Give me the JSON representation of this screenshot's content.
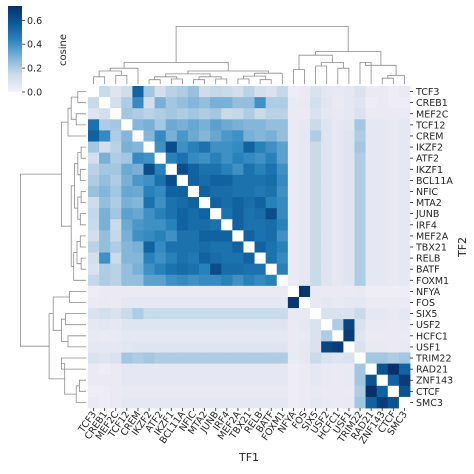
{
  "chart_data": {
    "type": "heatmap",
    "title": "",
    "xlabel": "TF1",
    "ylabel": "TF2",
    "rows": [
      "TCF3",
      "CREB1",
      "MEF2C",
      "TCF12",
      "CREM",
      "IKZF2",
      "ATF2",
      "IKZF1",
      "BCL11A",
      "NFIC",
      "MTA2",
      "JUNB",
      "IRF4",
      "MEF2A",
      "TBX21",
      "RELB",
      "BATF",
      "FOXM1",
      "NFYA",
      "FOS",
      "SIX5",
      "USF2",
      "HCFC1",
      "USF1",
      "TRIM22",
      "RAD21",
      "ZNF143",
      "CTCF",
      "SMC3"
    ],
    "columns": [
      "TCF3",
      "CREB1",
      "MEF2C",
      "TCF12",
      "CREM",
      "IKZF2",
      "ATF2",
      "IKZF1",
      "BCL11A",
      "NFIC",
      "MTA2",
      "JUNB",
      "IRF4",
      "MEF2A",
      "TBX21",
      "RELB",
      "BATF",
      "FOXM1",
      "NFYA",
      "FOS",
      "SIX5",
      "USF2",
      "HCFC1",
      "USF1",
      "TRIM22",
      "RAD21",
      "ZNF143",
      "CTCF",
      "SMC3"
    ],
    "values": [
      [
        0.0,
        0.15,
        0.08,
        0.14,
        0.55,
        0.22,
        0.12,
        0.18,
        0.2,
        0.24,
        0.14,
        0.16,
        0.15,
        0.12,
        0.18,
        0.12,
        0.1,
        0.16,
        0.03,
        0.04,
        0.1,
        0.06,
        0.05,
        0.06,
        0.1,
        0.04,
        0.04,
        0.03,
        0.04
      ],
      [
        0.15,
        0.0,
        0.12,
        0.2,
        0.42,
        0.12,
        0.3,
        0.22,
        0.25,
        0.28,
        0.25,
        0.3,
        0.3,
        0.25,
        0.25,
        0.4,
        0.2,
        0.2,
        0.04,
        0.05,
        0.12,
        0.07,
        0.04,
        0.06,
        0.08,
        0.03,
        0.04,
        0.03,
        0.03
      ],
      [
        0.08,
        0.12,
        0.0,
        0.22,
        0.2,
        0.18,
        0.2,
        0.22,
        0.2,
        0.22,
        0.2,
        0.22,
        0.15,
        0.16,
        0.2,
        0.15,
        0.18,
        0.18,
        0.04,
        0.04,
        0.1,
        0.06,
        0.05,
        0.06,
        0.1,
        0.04,
        0.04,
        0.04,
        0.04
      ],
      [
        0.5,
        0.2,
        0.22,
        0.0,
        0.28,
        0.3,
        0.22,
        0.32,
        0.3,
        0.33,
        0.3,
        0.35,
        0.32,
        0.3,
        0.28,
        0.28,
        0.25,
        0.25,
        0.04,
        0.06,
        0.15,
        0.08,
        0.06,
        0.07,
        0.22,
        0.06,
        0.06,
        0.05,
        0.06
      ],
      [
        0.55,
        0.42,
        0.2,
        0.28,
        0.0,
        0.28,
        0.42,
        0.3,
        0.38,
        0.32,
        0.28,
        0.33,
        0.38,
        0.4,
        0.3,
        0.28,
        0.3,
        0.25,
        0.04,
        0.06,
        0.2,
        0.08,
        0.06,
        0.08,
        0.2,
        0.06,
        0.06,
        0.05,
        0.06
      ],
      [
        0.22,
        0.12,
        0.18,
        0.3,
        0.28,
        0.0,
        0.4,
        0.62,
        0.4,
        0.45,
        0.5,
        0.4,
        0.4,
        0.42,
        0.55,
        0.45,
        0.4,
        0.35,
        0.04,
        0.06,
        0.15,
        0.08,
        0.06,
        0.08,
        0.22,
        0.06,
        0.06,
        0.05,
        0.06
      ],
      [
        0.12,
        0.3,
        0.2,
        0.22,
        0.42,
        0.4,
        0.0,
        0.45,
        0.5,
        0.42,
        0.4,
        0.45,
        0.4,
        0.45,
        0.42,
        0.4,
        0.45,
        0.35,
        0.04,
        0.06,
        0.15,
        0.08,
        0.06,
        0.08,
        0.2,
        0.06,
        0.06,
        0.05,
        0.06
      ],
      [
        0.18,
        0.22,
        0.22,
        0.32,
        0.3,
        0.62,
        0.45,
        0.0,
        0.62,
        0.55,
        0.5,
        0.5,
        0.45,
        0.4,
        0.5,
        0.45,
        0.5,
        0.4,
        0.04,
        0.06,
        0.15,
        0.08,
        0.06,
        0.08,
        0.2,
        0.06,
        0.06,
        0.05,
        0.06
      ],
      [
        0.2,
        0.25,
        0.2,
        0.3,
        0.38,
        0.4,
        0.5,
        0.62,
        0.0,
        0.55,
        0.52,
        0.55,
        0.55,
        0.5,
        0.5,
        0.5,
        0.52,
        0.42,
        0.04,
        0.06,
        0.15,
        0.08,
        0.06,
        0.08,
        0.2,
        0.06,
        0.06,
        0.05,
        0.06
      ],
      [
        0.24,
        0.28,
        0.22,
        0.33,
        0.32,
        0.45,
        0.42,
        0.55,
        0.55,
        0.0,
        0.55,
        0.52,
        0.52,
        0.5,
        0.5,
        0.48,
        0.5,
        0.4,
        0.04,
        0.06,
        0.15,
        0.08,
        0.06,
        0.08,
        0.2,
        0.06,
        0.06,
        0.05,
        0.06
      ],
      [
        0.14,
        0.25,
        0.2,
        0.3,
        0.28,
        0.5,
        0.4,
        0.5,
        0.52,
        0.55,
        0.0,
        0.55,
        0.52,
        0.55,
        0.52,
        0.55,
        0.45,
        0.42,
        0.04,
        0.06,
        0.15,
        0.08,
        0.06,
        0.08,
        0.2,
        0.06,
        0.06,
        0.05,
        0.06
      ],
      [
        0.16,
        0.3,
        0.22,
        0.35,
        0.33,
        0.4,
        0.45,
        0.5,
        0.55,
        0.52,
        0.55,
        0.0,
        0.5,
        0.55,
        0.5,
        0.52,
        0.62,
        0.42,
        0.04,
        0.06,
        0.15,
        0.08,
        0.06,
        0.08,
        0.2,
        0.06,
        0.06,
        0.05,
        0.06
      ],
      [
        0.15,
        0.3,
        0.15,
        0.32,
        0.38,
        0.4,
        0.4,
        0.45,
        0.55,
        0.52,
        0.52,
        0.5,
        0.0,
        0.55,
        0.5,
        0.5,
        0.52,
        0.45,
        0.04,
        0.06,
        0.15,
        0.08,
        0.06,
        0.08,
        0.2,
        0.06,
        0.06,
        0.05,
        0.06
      ],
      [
        0.12,
        0.25,
        0.16,
        0.3,
        0.4,
        0.42,
        0.45,
        0.4,
        0.5,
        0.5,
        0.55,
        0.55,
        0.55,
        0.0,
        0.55,
        0.5,
        0.52,
        0.4,
        0.04,
        0.06,
        0.15,
        0.08,
        0.06,
        0.08,
        0.2,
        0.06,
        0.06,
        0.05,
        0.06
      ],
      [
        0.18,
        0.25,
        0.2,
        0.28,
        0.3,
        0.55,
        0.42,
        0.5,
        0.5,
        0.5,
        0.52,
        0.5,
        0.5,
        0.55,
        0.0,
        0.55,
        0.5,
        0.45,
        0.04,
        0.06,
        0.15,
        0.08,
        0.06,
        0.08,
        0.2,
        0.06,
        0.06,
        0.05,
        0.06
      ],
      [
        0.12,
        0.4,
        0.15,
        0.28,
        0.28,
        0.45,
        0.4,
        0.45,
        0.5,
        0.48,
        0.55,
        0.52,
        0.5,
        0.5,
        0.55,
        0.0,
        0.5,
        0.42,
        0.04,
        0.06,
        0.15,
        0.08,
        0.06,
        0.08,
        0.2,
        0.06,
        0.06,
        0.05,
        0.06
      ],
      [
        0.1,
        0.2,
        0.18,
        0.25,
        0.3,
        0.4,
        0.45,
        0.5,
        0.52,
        0.5,
        0.45,
        0.62,
        0.52,
        0.52,
        0.5,
        0.5,
        0.0,
        0.45,
        0.04,
        0.06,
        0.15,
        0.08,
        0.06,
        0.08,
        0.2,
        0.06,
        0.06,
        0.05,
        0.06
      ],
      [
        0.16,
        0.2,
        0.18,
        0.25,
        0.25,
        0.35,
        0.35,
        0.4,
        0.42,
        0.4,
        0.42,
        0.42,
        0.45,
        0.4,
        0.45,
        0.42,
        0.45,
        0.0,
        0.04,
        0.06,
        0.15,
        0.08,
        0.06,
        0.08,
        0.2,
        0.06,
        0.06,
        0.05,
        0.06
      ],
      [
        0.03,
        0.04,
        0.04,
        0.04,
        0.04,
        0.04,
        0.04,
        0.04,
        0.04,
        0.04,
        0.04,
        0.04,
        0.04,
        0.04,
        0.04,
        0.04,
        0.04,
        0.04,
        0.0,
        0.7,
        0.05,
        0.04,
        0.04,
        0.04,
        0.05,
        0.03,
        0.03,
        0.03,
        0.03
      ],
      [
        0.04,
        0.05,
        0.04,
        0.06,
        0.06,
        0.06,
        0.06,
        0.06,
        0.06,
        0.06,
        0.06,
        0.06,
        0.06,
        0.06,
        0.06,
        0.06,
        0.06,
        0.06,
        0.7,
        0.0,
        0.05,
        0.06,
        0.05,
        0.06,
        0.06,
        0.04,
        0.04,
        0.04,
        0.04
      ],
      [
        0.1,
        0.12,
        0.1,
        0.15,
        0.2,
        0.15,
        0.15,
        0.15,
        0.15,
        0.15,
        0.15,
        0.15,
        0.15,
        0.15,
        0.15,
        0.15,
        0.15,
        0.15,
        0.05,
        0.05,
        0.0,
        0.1,
        0.1,
        0.1,
        0.15,
        0.06,
        0.06,
        0.05,
        0.06
      ],
      [
        0.06,
        0.07,
        0.06,
        0.08,
        0.08,
        0.08,
        0.08,
        0.08,
        0.08,
        0.08,
        0.08,
        0.08,
        0.08,
        0.08,
        0.08,
        0.08,
        0.08,
        0.08,
        0.04,
        0.06,
        0.1,
        0.0,
        0.2,
        0.65,
        0.1,
        0.05,
        0.05,
        0.04,
        0.05
      ],
      [
        0.05,
        0.04,
        0.05,
        0.06,
        0.06,
        0.06,
        0.06,
        0.06,
        0.06,
        0.06,
        0.06,
        0.06,
        0.06,
        0.06,
        0.06,
        0.06,
        0.06,
        0.06,
        0.04,
        0.05,
        0.1,
        0.2,
        0.0,
        0.68,
        0.08,
        0.04,
        0.04,
        0.04,
        0.04
      ],
      [
        0.06,
        0.06,
        0.06,
        0.07,
        0.08,
        0.08,
        0.08,
        0.08,
        0.08,
        0.08,
        0.08,
        0.08,
        0.08,
        0.08,
        0.08,
        0.08,
        0.08,
        0.08,
        0.04,
        0.06,
        0.1,
        0.65,
        0.68,
        0.0,
        0.1,
        0.05,
        0.05,
        0.04,
        0.05
      ],
      [
        0.1,
        0.08,
        0.1,
        0.22,
        0.2,
        0.22,
        0.2,
        0.2,
        0.2,
        0.2,
        0.2,
        0.2,
        0.2,
        0.2,
        0.2,
        0.2,
        0.2,
        0.2,
        0.05,
        0.06,
        0.15,
        0.1,
        0.08,
        0.1,
        0.0,
        0.22,
        0.22,
        0.2,
        0.22
      ],
      [
        0.04,
        0.03,
        0.04,
        0.06,
        0.06,
        0.06,
        0.06,
        0.06,
        0.06,
        0.06,
        0.06,
        0.06,
        0.06,
        0.06,
        0.06,
        0.06,
        0.06,
        0.06,
        0.03,
        0.04,
        0.06,
        0.05,
        0.04,
        0.05,
        0.22,
        0.0,
        0.6,
        0.72,
        0.55
      ],
      [
        0.04,
        0.04,
        0.04,
        0.06,
        0.06,
        0.06,
        0.06,
        0.06,
        0.06,
        0.06,
        0.06,
        0.06,
        0.06,
        0.06,
        0.06,
        0.06,
        0.06,
        0.06,
        0.03,
        0.04,
        0.06,
        0.05,
        0.04,
        0.05,
        0.22,
        0.6,
        0.0,
        0.55,
        0.68
      ],
      [
        0.03,
        0.03,
        0.04,
        0.05,
        0.05,
        0.05,
        0.05,
        0.05,
        0.05,
        0.05,
        0.05,
        0.05,
        0.05,
        0.05,
        0.05,
        0.05,
        0.05,
        0.05,
        0.03,
        0.04,
        0.05,
        0.04,
        0.04,
        0.04,
        0.2,
        0.72,
        0.55,
        0.0,
        0.6
      ],
      [
        0.04,
        0.03,
        0.04,
        0.06,
        0.06,
        0.06,
        0.06,
        0.06,
        0.06,
        0.06,
        0.06,
        0.06,
        0.06,
        0.06,
        0.06,
        0.06,
        0.06,
        0.06,
        0.03,
        0.04,
        0.06,
        0.05,
        0.04,
        0.05,
        0.22,
        0.55,
        0.68,
        0.6,
        0.0
      ]
    ],
    "colorbar": {
      "label": "cosine",
      "ticks": [
        "0.0",
        "0.2",
        "0.4",
        "0.6"
      ],
      "tick_values": [
        0.0,
        0.2,
        0.4,
        0.6
      ],
      "range": [
        0.0,
        0.72
      ],
      "colors": [
        "#f7f0f8",
        "#ccdcea",
        "#7fb4d8",
        "#2d86bf",
        "#0a5b99",
        "#08306b"
      ]
    },
    "dendrograms": {
      "top": "columns",
      "left": "rows"
    },
    "grid": false
  }
}
